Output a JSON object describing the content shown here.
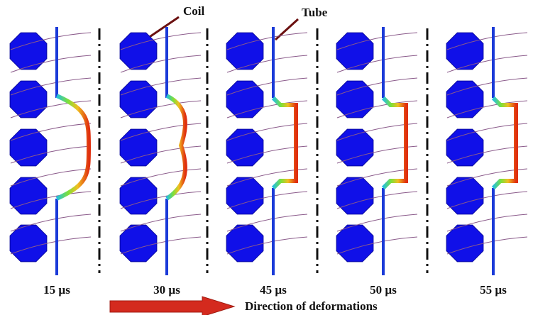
{
  "annotations": {
    "coil": "Coil",
    "tube": "Tube"
  },
  "panels": [
    {
      "label": "15 µs"
    },
    {
      "label": "30 µs"
    },
    {
      "label": "45 µs"
    },
    {
      "label": "50 µs"
    },
    {
      "label": "55 µs"
    }
  ],
  "arrow_label": "Direction of deformations"
}
